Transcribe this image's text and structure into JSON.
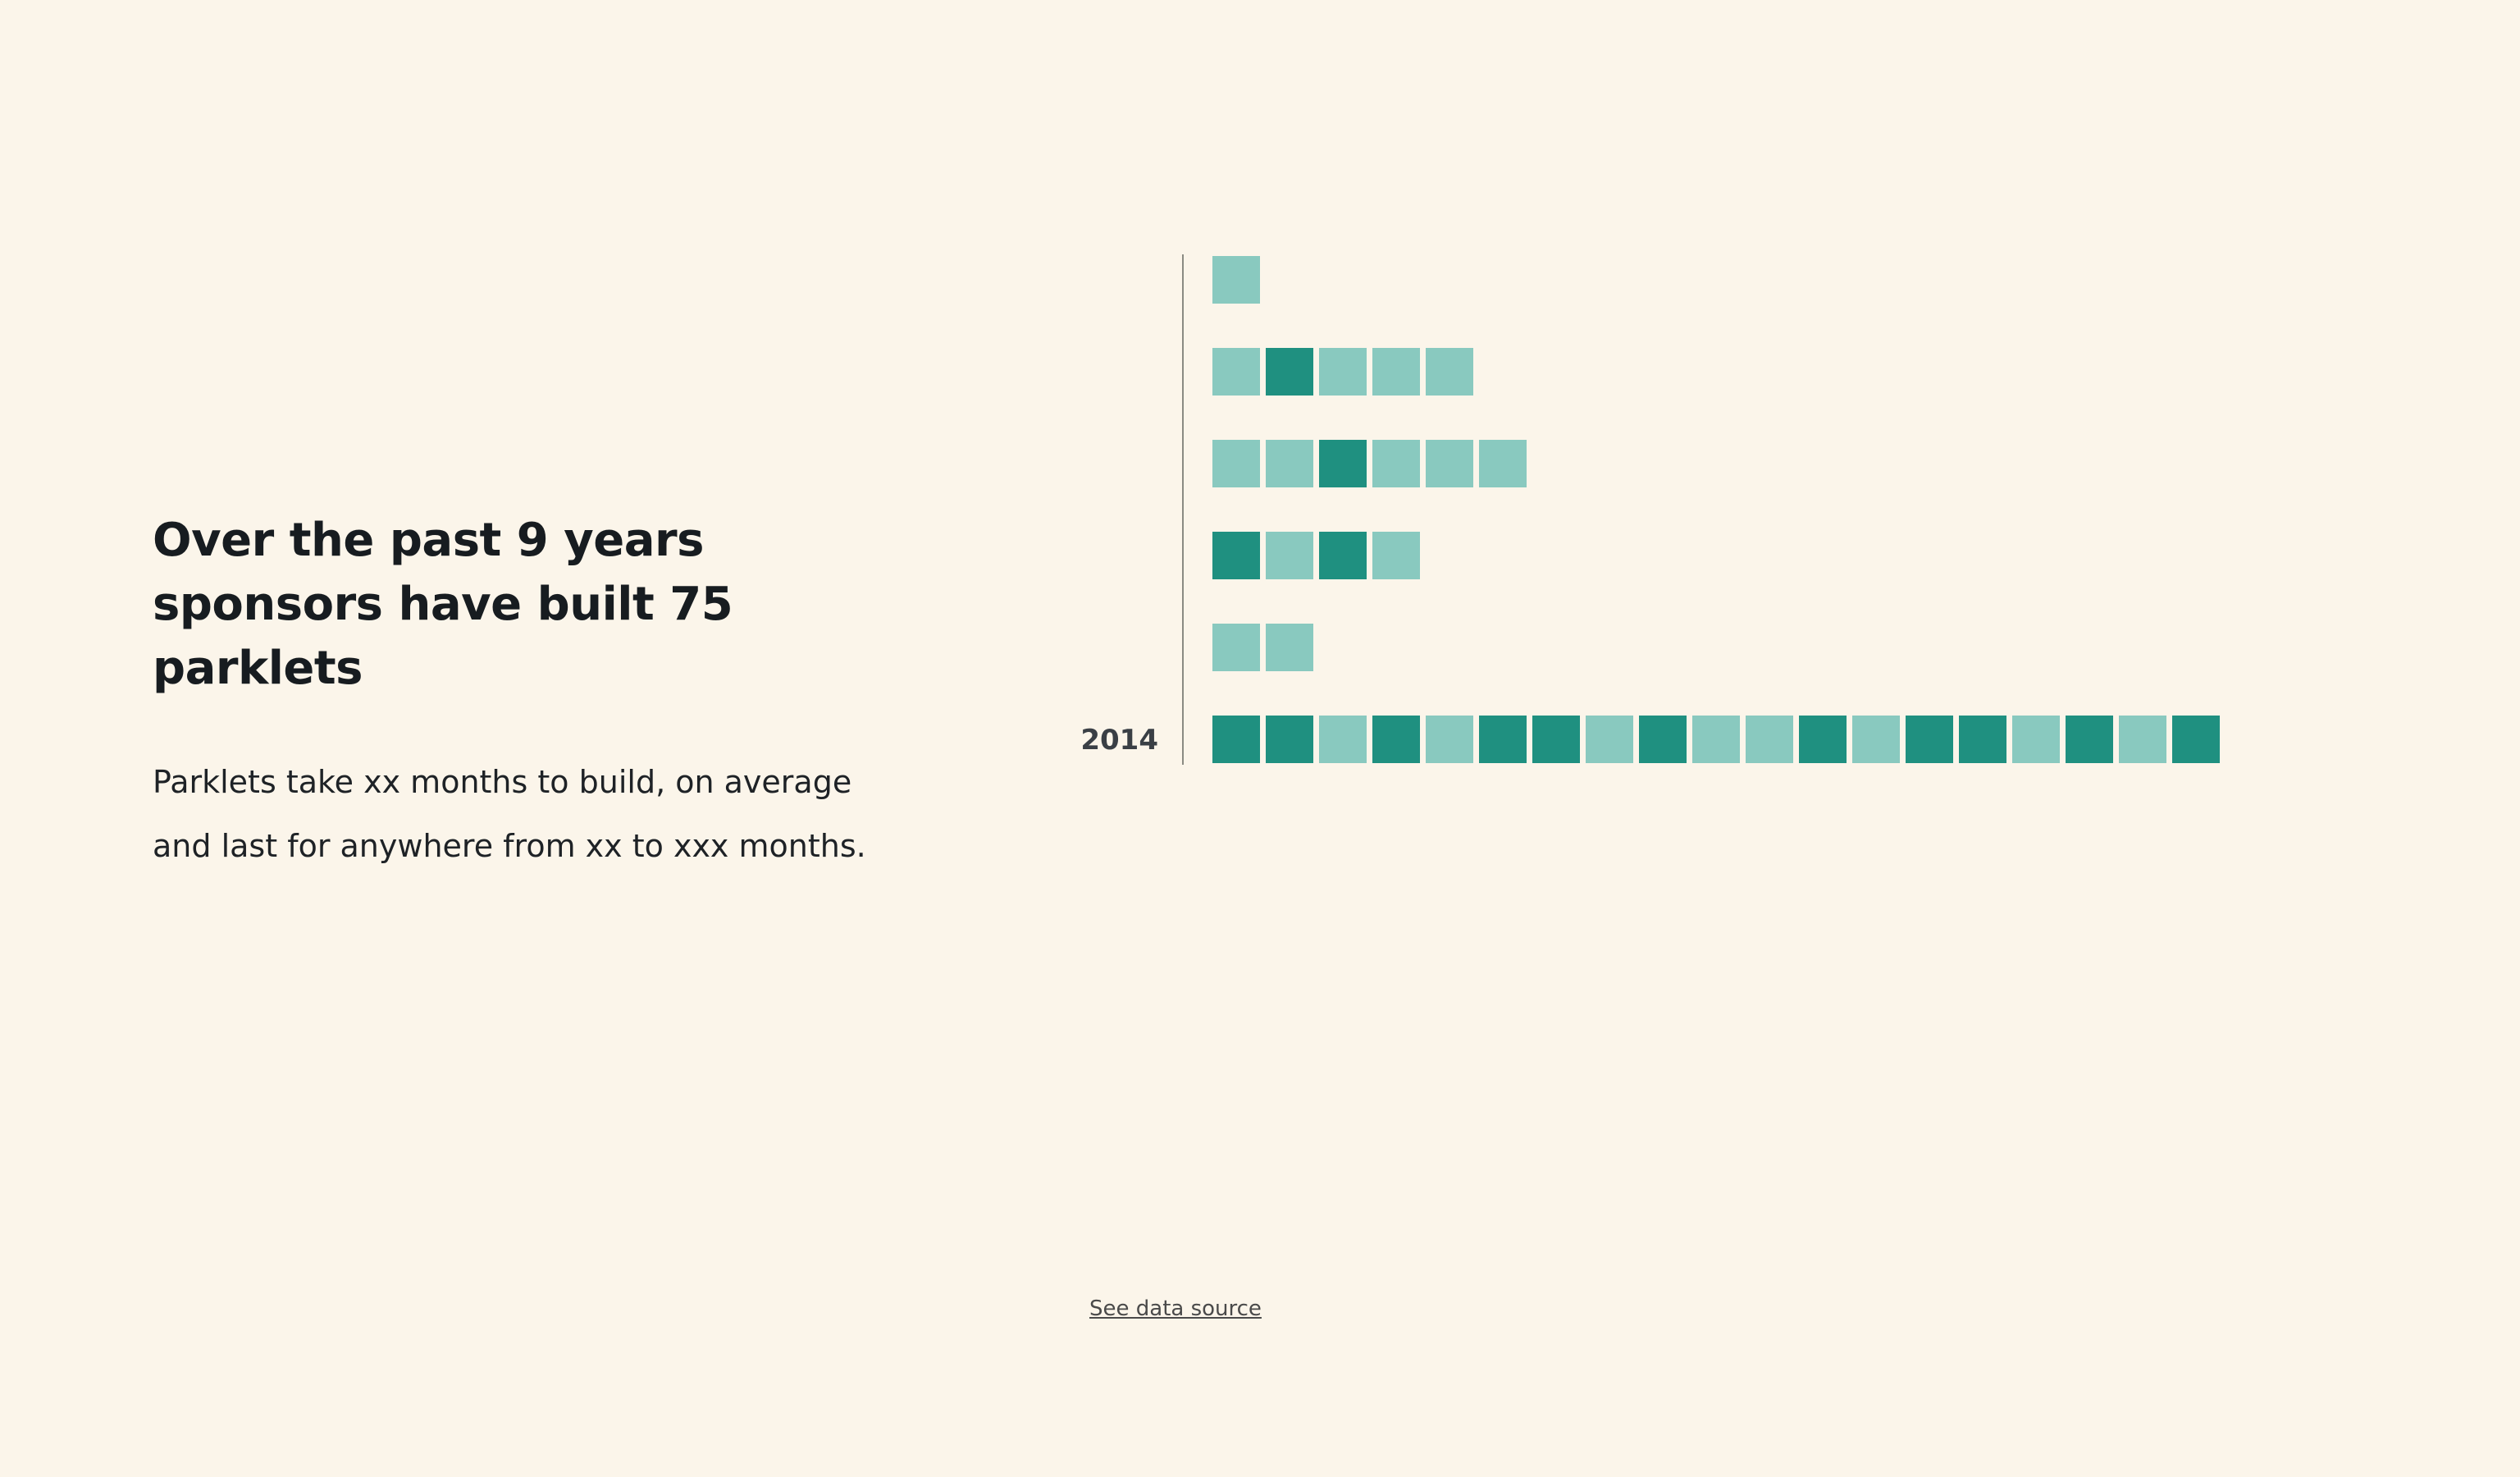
{
  "intro": {
    "headline": "Over the past 9 years sponsors have built 75 parklets",
    "body": "Parklets take xx months to build, on average and last for anywhere from xx to xxx months."
  },
  "colors": {
    "background": "#fbf5ea",
    "dark": "#1f9080",
    "light": "#89c9bf",
    "axis": "#8a8a82"
  },
  "chart_data": {
    "type": "bar",
    "title": "",
    "xlabel": "",
    "ylabel": "",
    "orientation": "horizontal",
    "unit": "parklet",
    "row_labels": [
      "",
      "",
      "",
      "",
      "",
      "2014"
    ],
    "series_color_key": [
      "dark",
      "light"
    ],
    "rows": [
      {
        "label": "",
        "units": [
          "light"
        ]
      },
      {
        "label": "",
        "units": [
          "light",
          "dark",
          "light",
          "light",
          "light"
        ]
      },
      {
        "label": "",
        "units": [
          "light",
          "light",
          "dark",
          "light",
          "light",
          "light"
        ]
      },
      {
        "label": "",
        "units": [
          "dark",
          "light",
          "dark",
          "light"
        ]
      },
      {
        "label": "",
        "units": [
          "light",
          "light"
        ]
      },
      {
        "label": "2014",
        "units": [
          "dark",
          "dark",
          "light",
          "dark",
          "light",
          "dark",
          "dark",
          "light",
          "dark",
          "light",
          "light",
          "dark",
          "light",
          "dark",
          "dark",
          "light",
          "dark",
          "light",
          "dark"
        ]
      }
    ],
    "values": [
      1,
      5,
      6,
      4,
      2,
      19
    ]
  },
  "footer": {
    "source_link": "See data source"
  }
}
